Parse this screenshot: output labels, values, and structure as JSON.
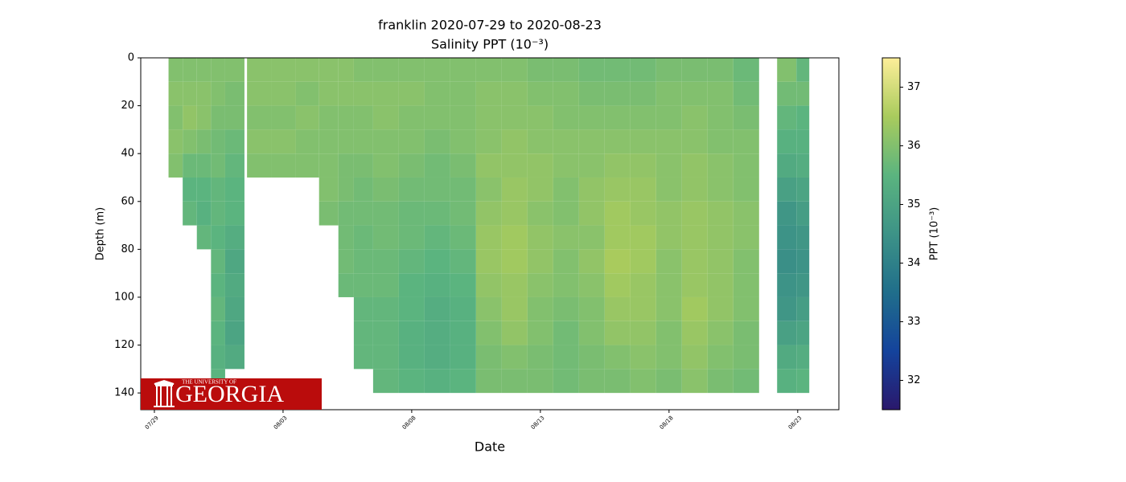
{
  "chart_data": {
    "type": "scatter",
    "title": "franklin 2020-07-29 to 2020-08-23",
    "subtitle": "Salinity PPT (10⁻³)",
    "x_label": "Date",
    "y_label": "Depth (m)",
    "colorbar_label": "PPT (10⁻³)",
    "logo": {
      "small": "THE UNIVERSITY OF",
      "large": "GEORGIA"
    },
    "xlim": [
      -0.53,
      26.6
    ],
    "xticks": [
      {
        "value": 0,
        "label": "07/29"
      },
      {
        "value": 5,
        "label": "08/03"
      },
      {
        "value": 10,
        "label": "08/08"
      },
      {
        "value": 15,
        "label": "08/13"
      },
      {
        "value": 20,
        "label": "08/18"
      },
      {
        "value": 25,
        "label": "08/23"
      }
    ],
    "ylim": [
      147,
      0
    ],
    "yticks": [
      0,
      20,
      40,
      60,
      80,
      100,
      120,
      140
    ],
    "clim": [
      31.5,
      37.5
    ],
    "cticks": [
      32,
      33,
      34,
      35,
      36,
      37
    ],
    "colormap": [
      "#2a186c",
      "#14439c",
      "#206e8b",
      "#3d9387",
      "#5bb47f",
      "#a9cb5d",
      "#fdee99"
    ],
    "x": [
      0.8,
      1.4,
      1.9,
      2.5,
      3.0,
      4.1,
      5.0,
      6.0,
      6.8,
      7.5,
      8.0,
      9,
      10,
      11,
      12,
      13,
      14,
      15,
      16,
      17,
      18,
      19,
      20,
      21,
      22,
      23,
      24.7,
      25.2
    ],
    "y": [
      5,
      15,
      25,
      35,
      45,
      55,
      65,
      75,
      85,
      95,
      105,
      115,
      125,
      135
    ],
    "values": [
      [
        36.0,
        36.1,
        36.0,
        36.1,
        36.0,
        null,
        null,
        null,
        null,
        null,
        null,
        null,
        null,
        null
      ],
      [
        36.0,
        36.1,
        36.2,
        36.0,
        35.7,
        35.5,
        35.6,
        null,
        null,
        null,
        null,
        null,
        null,
        null
      ],
      [
        36.0,
        36.1,
        36.1,
        35.9,
        35.7,
        35.5,
        35.4,
        35.6,
        null,
        null,
        null,
        null,
        null,
        null
      ],
      [
        36.0,
        36.0,
        35.9,
        35.8,
        35.8,
        35.6,
        35.6,
        35.5,
        35.6,
        35.5,
        35.6,
        35.5,
        35.4,
        35.5
      ],
      [
        36.0,
        35.9,
        35.9,
        35.7,
        35.6,
        35.5,
        35.5,
        35.3,
        35.1,
        35.2,
        35.1,
        35.0,
        35.2,
        null
      ],
      [
        36.1,
        36.1,
        36.0,
        36.1,
        36.0,
        null,
        null,
        null,
        null,
        null,
        null,
        null,
        null,
        null
      ],
      [
        36.1,
        36.1,
        36.0,
        36.1,
        36.0,
        null,
        null,
        null,
        null,
        null,
        null,
        null,
        null,
        null
      ],
      [
        36.1,
        36.0,
        36.1,
        36.0,
        36.0,
        null,
        null,
        null,
        null,
        null,
        null,
        null,
        null,
        null
      ],
      [
        36.1,
        36.1,
        36.0,
        36.0,
        36.0,
        36.0,
        35.9,
        null,
        null,
        null,
        null,
        null,
        null,
        null
      ],
      [
        36.1,
        36.1,
        36.0,
        36.0,
        35.9,
        35.9,
        35.8,
        35.8,
        35.8,
        35.7,
        null,
        null,
        null,
        null
      ],
      [
        36.0,
        36.1,
        36.0,
        36.0,
        35.9,
        35.8,
        35.8,
        35.7,
        35.7,
        35.7,
        35.6,
        35.6,
        35.6,
        null
      ],
      [
        36.0,
        36.1,
        36.1,
        36.0,
        36.0,
        35.9,
        35.8,
        35.8,
        35.7,
        35.7,
        35.6,
        35.6,
        35.6,
        35.6
      ],
      [
        36.0,
        36.1,
        36.0,
        36.0,
        35.9,
        35.8,
        35.7,
        35.7,
        35.6,
        35.5,
        35.5,
        35.4,
        35.4,
        35.5
      ],
      [
        36.0,
        36.0,
        36.0,
        35.9,
        35.8,
        35.8,
        35.7,
        35.6,
        35.5,
        35.4,
        35.3,
        35.3,
        35.3,
        35.4
      ],
      [
        36.0,
        36.0,
        36.0,
        36.0,
        35.9,
        35.8,
        35.8,
        35.7,
        35.6,
        35.5,
        35.4,
        35.4,
        35.4,
        35.5
      ],
      [
        36.0,
        36.1,
        36.1,
        36.1,
        36.2,
        36.1,
        36.2,
        36.3,
        36.3,
        36.2,
        36.1,
        36.0,
        35.9,
        35.9
      ],
      [
        36.0,
        36.1,
        36.1,
        36.2,
        36.2,
        36.3,
        36.3,
        36.4,
        36.4,
        36.3,
        36.3,
        36.2,
        36.0,
        35.9
      ],
      [
        35.9,
        36.0,
        36.1,
        36.1,
        36.2,
        36.2,
        36.1,
        36.2,
        36.2,
        36.1,
        36.0,
        36.0,
        35.9,
        35.9
      ],
      [
        35.9,
        36.0,
        36.0,
        36.1,
        36.1,
        36.0,
        36.0,
        36.1,
        36.0,
        36.0,
        35.9,
        35.8,
        35.8,
        35.8
      ],
      [
        35.8,
        35.9,
        36.0,
        36.1,
        36.1,
        36.2,
        36.2,
        36.1,
        36.2,
        36.1,
        36.0,
        36.0,
        35.9,
        35.9
      ],
      [
        35.8,
        35.9,
        36.0,
        36.1,
        36.2,
        36.3,
        36.4,
        36.4,
        36.5,
        36.4,
        36.3,
        36.2,
        36.0,
        35.9
      ],
      [
        35.8,
        35.9,
        36.0,
        36.1,
        36.2,
        36.3,
        36.3,
        36.4,
        36.4,
        36.3,
        36.3,
        36.2,
        36.1,
        36.0
      ],
      [
        35.9,
        36.0,
        36.0,
        36.1,
        36.1,
        36.1,
        36.2,
        36.2,
        36.1,
        36.1,
        36.1,
        36.0,
        36.0,
        35.9
      ],
      [
        35.9,
        36.0,
        36.1,
        36.1,
        36.2,
        36.2,
        36.3,
        36.3,
        36.3,
        36.3,
        36.4,
        36.3,
        36.2,
        36.1
      ],
      [
        35.9,
        36.0,
        36.0,
        36.0,
        36.1,
        36.1,
        36.2,
        36.2,
        36.2,
        36.2,
        36.2,
        36.1,
        36.0,
        35.9
      ],
      [
        35.7,
        35.8,
        35.9,
        36.0,
        36.0,
        36.0,
        36.1,
        36.1,
        36.0,
        36.0,
        36.0,
        35.9,
        35.9,
        35.8
      ],
      [
        36.0,
        35.8,
        35.6,
        35.4,
        35.2,
        34.9,
        34.6,
        34.5,
        34.4,
        34.5,
        34.6,
        34.9,
        35.2,
        35.4
      ],
      [
        35.6,
        35.8,
        35.5,
        35.4,
        35.3,
        35.0,
        34.8,
        34.6,
        34.5,
        34.6,
        34.8,
        35.0,
        35.3,
        35.5
      ]
    ]
  }
}
